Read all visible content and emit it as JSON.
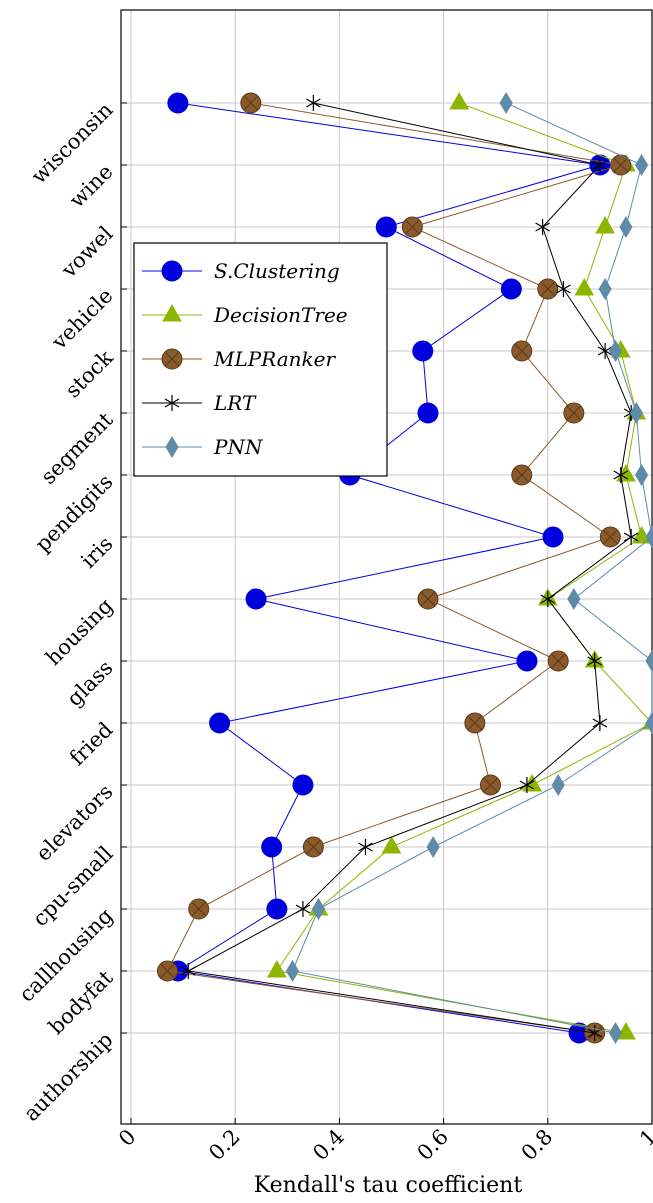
{
  "chart_data": {
    "type": "line",
    "orientation": "horizontal-values",
    "xlabel": "Kendall's tau coefficient",
    "xlim": [
      0,
      1
    ],
    "x_ticks": [
      "0",
      "0.2",
      "0.4",
      "0.6",
      "0.8",
      "1"
    ],
    "categories": [
      "wisconsin",
      "wine",
      "vowel",
      "vehicle",
      "stock",
      "segment",
      "pendigits",
      "iris",
      "housing",
      "glass",
      "fried",
      "elevators",
      "cpu-small",
      "callhousing",
      "bodyfat",
      "authorship"
    ],
    "grid": true,
    "legend_position": "top-left",
    "series": [
      {
        "name": "S.Clustering",
        "color": "#0000dd",
        "marker": "circle",
        "values": [
          0.09,
          0.9,
          0.49,
          0.73,
          0.56,
          0.57,
          0.42,
          0.81,
          0.24,
          0.76,
          0.17,
          0.33,
          0.27,
          0.28,
          0.09,
          0.86
        ]
      },
      {
        "name": "DecisionTree",
        "color": "#8db600",
        "marker": "triangle",
        "values": [
          0.63,
          0.95,
          0.91,
          0.87,
          0.94,
          0.97,
          0.95,
          0.98,
          0.8,
          0.89,
          1.0,
          0.77,
          0.5,
          0.36,
          0.28,
          0.95
        ]
      },
      {
        "name": "MLPRanker",
        "color": "#8b5a2b",
        "marker": "circle-x",
        "values": [
          0.23,
          0.94,
          0.54,
          0.8,
          0.75,
          0.85,
          0.75,
          0.92,
          0.57,
          0.82,
          0.66,
          0.69,
          0.35,
          0.13,
          0.07,
          0.89
        ]
      },
      {
        "name": "LRT",
        "color": "#000000",
        "marker": "star",
        "values": [
          0.35,
          0.9,
          0.79,
          0.83,
          0.91,
          0.96,
          0.94,
          0.96,
          0.8,
          0.89,
          0.9,
          0.76,
          0.45,
          0.33,
          0.11,
          0.89
        ]
      },
      {
        "name": "PNN",
        "color": "#5f8ba9",
        "marker": "diamond",
        "values": [
          0.72,
          0.98,
          0.95,
          0.91,
          0.93,
          0.97,
          0.98,
          1.0,
          0.85,
          1.0,
          1.0,
          0.82,
          0.58,
          0.36,
          0.31,
          0.93
        ]
      }
    ]
  }
}
